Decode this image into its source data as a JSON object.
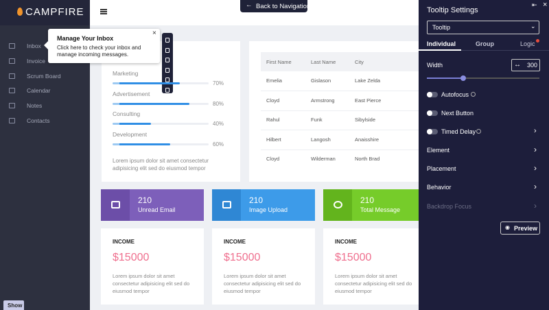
{
  "sidebar": {
    "brand": "CAMPFIRE",
    "items": [
      "Inbox",
      "Invoice",
      "Scrum Board",
      "Calendar",
      "Notes",
      "Contacts"
    ],
    "show_button": "Show"
  },
  "topbar": {
    "back_button": "Back to Navigation"
  },
  "tooltip": {
    "title": "Manage Your Inbox",
    "body": "Click here to check your inbox and manage incoming messages."
  },
  "progress": {
    "items": [
      {
        "name": "Marketing",
        "value": 70,
        "label": "70%"
      },
      {
        "name": "Advertisement",
        "value": 80,
        "label": "80%"
      },
      {
        "name": "Consulting",
        "value": 40,
        "label": "40%"
      },
      {
        "name": "Development",
        "value": 60,
        "label": "60%"
      }
    ],
    "text": "Lorem ipsum dolor sit amet consectetur adipisicing elit sed do eiusmod tempor"
  },
  "table": {
    "columns": [
      "First Name",
      "Last Name",
      "City"
    ],
    "rows": [
      [
        "Emelia",
        "Gislason",
        "Lake Zelda"
      ],
      [
        "Cloyd",
        "Armstrong",
        "East Pierce"
      ],
      [
        "Rahul",
        "Funk",
        "Sibylside"
      ],
      [
        "Hilbert",
        "Langosh",
        "Anaisshire"
      ],
      [
        "Cloyd",
        "Wilderman",
        "North Brad"
      ]
    ]
  },
  "stats": [
    {
      "value": 210,
      "label": "Unread Email"
    },
    {
      "value": 210,
      "label": "Image Upload"
    },
    {
      "value": 210,
      "label": "Total Message"
    }
  ],
  "income": [
    {
      "title": "INCOME",
      "amount": "$15000",
      "text": "Lorem ipsum dolor sit amet consectetur adipisicing elit sed do eiusmod tempor"
    },
    {
      "title": "INCOME",
      "amount": "$15000",
      "text": "Lorem ipsum dolor sit amet consectetur adipisicing elit sed do eiusmod tempor"
    },
    {
      "title": "INCOME",
      "amount": "$15000",
      "text": "Lorem ipsum dolor sit amet consectetur adipisicing elit sed do eiusmod tempor"
    }
  ],
  "settings": {
    "title": "Tooltip Settings",
    "select": "Tooltip",
    "tabs": [
      "Individual",
      "Group",
      "Logic"
    ],
    "width_label": "Width",
    "width_value": 300,
    "toggles": [
      "Autofocus",
      "Next Button",
      "Timed Delay"
    ],
    "sections": [
      "Element",
      "Placement",
      "Behavior",
      "Backdrop Focus"
    ],
    "preview": "Preview"
  }
}
